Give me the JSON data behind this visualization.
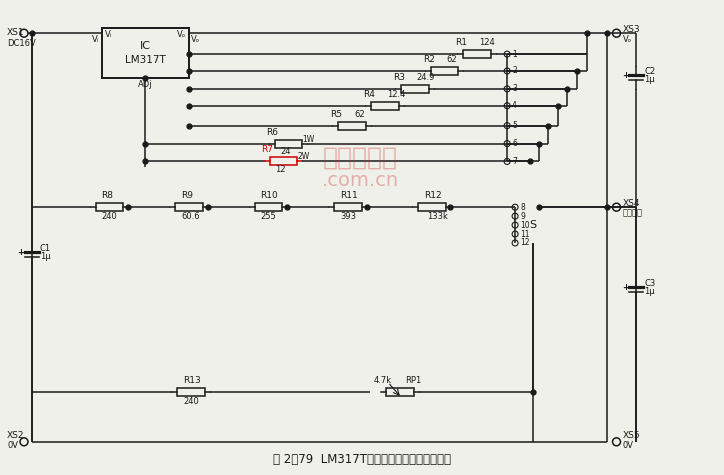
{
  "title": "图 2－79  LM317T组成恒流源和恒压源电路图",
  "bg_color": "#f0f0eb",
  "line_color": "#1a1a1a",
  "r7_color": "#cc0000",
  "watermark_color": "#cc3333",
  "components": {
    "resistors": [
      {
        "name": "R1",
        "value": "124",
        "extra": ""
      },
      {
        "name": "R2",
        "value": "62",
        "extra": ""
      },
      {
        "name": "R3",
        "value": "24.9",
        "extra": ""
      },
      {
        "name": "R4",
        "value": "12.4",
        "extra": ""
      },
      {
        "name": "R5",
        "value": "62",
        "extra": ""
      },
      {
        "name": "R6",
        "value": "24",
        "extra": "1W"
      },
      {
        "name": "R7",
        "value": "12",
        "extra": "2W"
      },
      {
        "name": "R8",
        "value": "240",
        "extra": ""
      },
      {
        "name": "R9",
        "value": "60.6",
        "extra": ""
      },
      {
        "name": "R10",
        "value": "255",
        "extra": ""
      },
      {
        "name": "R11",
        "value": "393",
        "extra": ""
      },
      {
        "name": "R12",
        "value": "133k",
        "extra": ""
      },
      {
        "name": "R13",
        "value": "240",
        "extra": ""
      },
      {
        "name": "RP1",
        "value": "4.7k",
        "extra": ""
      }
    ],
    "capacitors": [
      {
        "name": "C1",
        "value": "1μ"
      },
      {
        "name": "C2",
        "value": "1μ"
      },
      {
        "name": "C3",
        "value": "1μ"
      }
    ]
  }
}
